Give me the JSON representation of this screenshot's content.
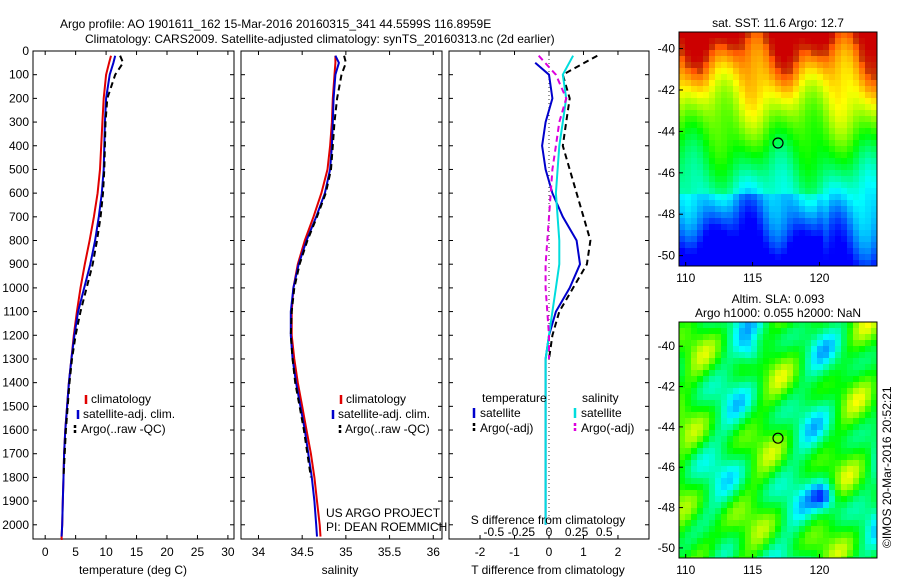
{
  "header": {
    "line1": "Argo profile: AO 1901611_162 15-Mar-2016 20160315_341 44.5599S 116.8959E",
    "line2": "Climatology: CARS2009. Satellite-adjusted climatology: synTS_20160313.nc (2d earlier)"
  },
  "colors": {
    "climatology": "#e00000",
    "satellite": "#0000cc",
    "argo": "#000000",
    "sal_sat": "#00dddd",
    "sal_argo": "#dd00dd"
  },
  "chart_data": [
    {
      "type": "line",
      "id": "temperature",
      "xlabel": "temperature (deg C)",
      "ylabel": "",
      "xlim": [
        -2,
        31
      ],
      "ylim": [
        2060,
        0
      ],
      "xticks": [
        0,
        5,
        10,
        15,
        20,
        25,
        30
      ],
      "yticks": [
        0,
        100,
        200,
        300,
        400,
        500,
        600,
        700,
        800,
        900,
        1000,
        1100,
        1200,
        1300,
        1400,
        1500,
        1600,
        1700,
        1800,
        1900,
        2000
      ],
      "legend": [
        "climatology",
        "satellite-adj. clim.",
        "Argo(..raw -QC)"
      ],
      "series": [
        {
          "name": "climatology",
          "color": "#e00000",
          "dash": "",
          "x": [
            10.8,
            10.5,
            10.0,
            9.6,
            9.4,
            9.2,
            9.0,
            8.6,
            8.0,
            7.3,
            6.5,
            5.8,
            5.2,
            4.7,
            4.3,
            3.9,
            3.6,
            3.3,
            3.1,
            3.0,
            2.9,
            2.8,
            2.7,
            2.7,
            2.6
          ],
          "y": [
            20,
            50,
            100,
            200,
            300,
            400,
            500,
            600,
            700,
            800,
            900,
            1000,
            1100,
            1200,
            1300,
            1400,
            1500,
            1600,
            1700,
            1800,
            1900,
            2000,
            2050,
            2060,
            2060
          ]
        },
        {
          "name": "satellite-adj. clim.",
          "color": "#0000cc",
          "dash": "",
          "x": [
            11.5,
            11.2,
            10.6,
            10.0,
            9.8,
            9.7,
            9.6,
            9.3,
            8.8,
            8.2,
            7.4,
            6.4,
            5.4,
            4.8,
            4.3,
            3.9,
            3.6,
            3.3,
            3.1,
            3.0,
            2.9,
            2.8,
            2.7
          ],
          "y": [
            20,
            50,
            100,
            200,
            300,
            400,
            500,
            600,
            700,
            800,
            900,
            1000,
            1100,
            1200,
            1300,
            1400,
            1500,
            1600,
            1700,
            1800,
            1900,
            2000,
            2050
          ]
        },
        {
          "name": "Argo(..raw -QC)",
          "color": "#000000",
          "dash": "6,4",
          "x": [
            12.3,
            12.8,
            11.5,
            10.2,
            9.9,
            9.8,
            9.7,
            9.5,
            9.1,
            8.5,
            7.8,
            6.8,
            5.8,
            5.0,
            4.4,
            4.0,
            3.7,
            3.4,
            3.2,
            3.0
          ],
          "y": [
            20,
            50,
            100,
            200,
            300,
            400,
            500,
            600,
            700,
            800,
            900,
            1000,
            1100,
            1200,
            1300,
            1400,
            1500,
            1600,
            1700,
            1800
          ]
        }
      ]
    },
    {
      "type": "line",
      "id": "salinity",
      "xlabel": "salinity",
      "xlim": [
        33.8,
        36.1
      ],
      "ylim": [
        2060,
        0
      ],
      "xticks": [
        34,
        34.5,
        35,
        35.5,
        36
      ],
      "legend": [
        "climatology",
        "satellite-adj. clim.",
        "Argo(..raw -QC)"
      ],
      "annotation": [
        "US ARGO PROJECT",
        "PI: DEAN ROEMMICH"
      ],
      "series": [
        {
          "name": "climatology",
          "color": "#e00000",
          "dash": "",
          "x": [
            34.88,
            34.88,
            34.87,
            34.85,
            34.84,
            34.82,
            34.79,
            34.72,
            34.63,
            34.53,
            34.45,
            34.4,
            34.38,
            34.38,
            34.41,
            34.45,
            34.5,
            34.55,
            34.6,
            34.64,
            34.67,
            34.7,
            34.71
          ],
          "y": [
            20,
            50,
            100,
            200,
            300,
            400,
            500,
            600,
            700,
            800,
            900,
            1000,
            1100,
            1200,
            1300,
            1400,
            1500,
            1600,
            1700,
            1800,
            1900,
            2000,
            2050
          ]
        },
        {
          "name": "satellite-adj. clim.",
          "color": "#0000cc",
          "dash": "",
          "x": [
            34.88,
            34.92,
            34.88,
            34.86,
            34.85,
            34.84,
            34.82,
            34.76,
            34.66,
            34.55,
            34.46,
            34.4,
            34.37,
            34.37,
            34.39,
            34.43,
            34.48,
            34.53,
            34.57,
            34.61,
            34.64,
            34.66,
            34.67
          ],
          "y": [
            20,
            50,
            100,
            200,
            300,
            400,
            500,
            600,
            700,
            800,
            900,
            1000,
            1100,
            1200,
            1300,
            1400,
            1500,
            1600,
            1700,
            1800,
            1900,
            2000,
            2050
          ]
        },
        {
          "name": "Argo(..raw -QC)",
          "color": "#000000",
          "dash": "6,4",
          "x": [
            34.98,
            35.0,
            34.95,
            34.9,
            34.87,
            34.85,
            34.83,
            34.77,
            34.67,
            34.56,
            34.47,
            34.41,
            34.38,
            34.37,
            34.39,
            34.42,
            34.47,
            34.52,
            34.56,
            34.6
          ],
          "y": [
            20,
            50,
            100,
            200,
            300,
            400,
            500,
            600,
            700,
            800,
            900,
            1000,
            1100,
            1200,
            1300,
            1400,
            1500,
            1600,
            1700,
            1800
          ]
        }
      ]
    },
    {
      "type": "line",
      "id": "difference",
      "xlabel": "T difference from climatology",
      "xlabel_top": "S difference from climatology",
      "xlim": [
        -2.9,
        2.9
      ],
      "ylim": [
        2060,
        0
      ],
      "xticks": [
        -2,
        -1,
        0,
        1,
        2
      ],
      "xticks_top": [
        "-0.5",
        "-0.25",
        "0",
        "0.25",
        "0.5"
      ],
      "legend_title_left": "temperature",
      "legend_title_right": "salinity",
      "legend": [
        "satellite",
        "Argo(-adj)",
        "satellite",
        "Argo(-adj)"
      ],
      "series": [
        {
          "name": "satellite",
          "group": "temperature",
          "color": "#0000cc",
          "dash": "",
          "x": [
            -0.4,
            0.0,
            0.1,
            -0.1,
            -0.2,
            -0.1,
            0.1,
            0.4,
            0.8,
            0.9,
            0.6,
            0.2,
            0.0,
            -0.1,
            -0.1,
            -0.1,
            -0.1,
            -0.1,
            -0.1,
            -0.1
          ],
          "y": [
            50,
            100,
            200,
            300,
            400,
            500,
            600,
            700,
            800,
            900,
            1000,
            1100,
            1200,
            1300,
            1400,
            1500,
            1600,
            1700,
            1800,
            2000
          ]
        },
        {
          "name": "Argo(-adj)",
          "group": "temperature",
          "color": "#000000",
          "dash": "6,4",
          "x": [
            1.4,
            0.4,
            0.6,
            0.5,
            0.4,
            0.6,
            0.8,
            1.0,
            1.2,
            1.1,
            0.7,
            0.3,
            0.1,
            0.0
          ],
          "y": [
            20,
            100,
            200,
            300,
            400,
            500,
            600,
            700,
            800,
            900,
            1000,
            1100,
            1200,
            1300
          ]
        },
        {
          "name": "satellite",
          "group": "salinity",
          "color": "#00dddd",
          "dash": "",
          "x": [
            0.7,
            0.4,
            0.5,
            0.4,
            0.3,
            0.25,
            0.2,
            0.25,
            0.3,
            0.3,
            0.2,
            0.1,
            0.0,
            -0.1,
            -0.1,
            -0.1,
            -0.1,
            -0.1,
            -0.1,
            -0.1
          ],
          "y": [
            20,
            100,
            200,
            300,
            400,
            500,
            600,
            700,
            800,
            900,
            1000,
            1100,
            1200,
            1300,
            1400,
            1500,
            1600,
            1700,
            1800,
            2000
          ]
        },
        {
          "name": "Argo(-adj)",
          "group": "salinity",
          "color": "#dd00dd",
          "dash": "6,4",
          "x": [
            -0.3,
            0.2,
            0.5,
            0.3,
            0.2,
            0.1,
            0.05,
            0.0,
            -0.05,
            -0.1,
            -0.1,
            -0.05,
            0.0,
            0.0
          ],
          "y": [
            20,
            100,
            200,
            300,
            400,
            500,
            600,
            700,
            800,
            900,
            1000,
            1100,
            1200,
            1300
          ]
        }
      ]
    },
    {
      "type": "heatmap",
      "id": "sst-map",
      "title": "sat. SST: 11.6 Argo: 12.7",
      "xlim": [
        109.5,
        124.3
      ],
      "ylim": [
        -50.5,
        -39.2
      ],
      "xticks": [
        110,
        115,
        120
      ],
      "yticks": [
        -40,
        -42,
        -44,
        -46,
        -48,
        -50
      ],
      "marker": {
        "lon": 116.9,
        "lat": -44.56
      }
    },
    {
      "type": "heatmap",
      "id": "sla-map",
      "title_line1": "Altim. SLA: 0.093",
      "title_line2": "Argo h1000: 0.055 h2000: NaN",
      "xlim": [
        109.5,
        124.3
      ],
      "ylim": [
        -50.5,
        -38.8
      ],
      "xticks": [
        110,
        115,
        120
      ],
      "yticks": [
        -40,
        -42,
        -44,
        -46,
        -48,
        -50
      ],
      "marker": {
        "lon": 116.9,
        "lat": -44.56
      }
    }
  ],
  "footer": {
    "vertical_label": "©IMOS 20-Mar-2016 20:52:21"
  }
}
